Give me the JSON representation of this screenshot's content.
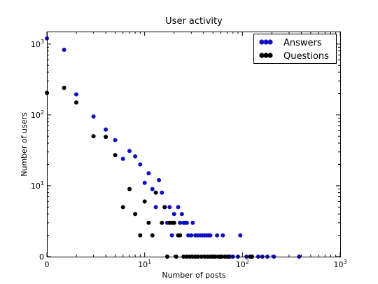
{
  "chart_data": {
    "type": "scatter",
    "title": "User activity",
    "xlabel": "Number of posts",
    "ylabel": "Number of users",
    "xscale": "log",
    "yscale": "log",
    "xlim": [
      1,
      1000
    ],
    "ylim": [
      1,
      1500
    ],
    "x_ticks": [
      {
        "value": 1,
        "base": "0",
        "exp": ""
      },
      {
        "value": 10,
        "base": "10",
        "exp": "1"
      },
      {
        "value": 100,
        "base": "10",
        "exp": "2"
      },
      {
        "value": 1000,
        "base": "10",
        "exp": "3"
      }
    ],
    "y_ticks": [
      {
        "value": 1,
        "base": "0",
        "exp": ""
      },
      {
        "value": 10,
        "base": "10",
        "exp": "1"
      },
      {
        "value": 100,
        "base": "10",
        "exp": "2"
      },
      {
        "value": 1000,
        "base": "10",
        "exp": "3"
      }
    ],
    "grid": false,
    "legend_position": "top-right",
    "series": [
      {
        "name": "Answers",
        "color": "#1010c0",
        "points": [
          [
            1,
            1200
          ],
          [
            1.5,
            830
          ],
          [
            2,
            195
          ],
          [
            3,
            95
          ],
          [
            4,
            62
          ],
          [
            5,
            44
          ],
          [
            6,
            24
          ],
          [
            7,
            31
          ],
          [
            8,
            26
          ],
          [
            9,
            20
          ],
          [
            10,
            11
          ],
          [
            11,
            15
          ],
          [
            12,
            9
          ],
          [
            13,
            5
          ],
          [
            14,
            12
          ],
          [
            15,
            8
          ],
          [
            16,
            5
          ],
          [
            17,
            3
          ],
          [
            18,
            5
          ],
          [
            19,
            2
          ],
          [
            20,
            4
          ],
          [
            22,
            5
          ],
          [
            23,
            3
          ],
          [
            24,
            4
          ],
          [
            25,
            3
          ],
          [
            26,
            3
          ],
          [
            27,
            3
          ],
          [
            28,
            2
          ],
          [
            30,
            2
          ],
          [
            31,
            3
          ],
          [
            33,
            2
          ],
          [
            35,
            2
          ],
          [
            37,
            2
          ],
          [
            39,
            2
          ],
          [
            41,
            2
          ],
          [
            43,
            2
          ],
          [
            45,
            2
          ],
          [
            47,
            2
          ],
          [
            50,
            1
          ],
          [
            55,
            2
          ],
          [
            60,
            1
          ],
          [
            63,
            2
          ],
          [
            70,
            1
          ],
          [
            75,
            1
          ],
          [
            80,
            1
          ],
          [
            90,
            1
          ],
          [
            95,
            2
          ],
          [
            110,
            1
          ],
          [
            125,
            1
          ],
          [
            145,
            1
          ],
          [
            160,
            1
          ],
          [
            180,
            1
          ],
          [
            210,
            1
          ],
          [
            380,
            1
          ]
        ]
      },
      {
        "name": "Questions",
        "color": "#000000",
        "points": [
          [
            1,
            205
          ],
          [
            1.5,
            240
          ],
          [
            2,
            150
          ],
          [
            3,
            50
          ],
          [
            4,
            49
          ],
          [
            5,
            27
          ],
          [
            6,
            5
          ],
          [
            7,
            9
          ],
          [
            8,
            4
          ],
          [
            9,
            2
          ],
          [
            10,
            6
          ],
          [
            11,
            3
          ],
          [
            12,
            2
          ],
          [
            13,
            8
          ],
          [
            15,
            3
          ],
          [
            16,
            5
          ],
          [
            17,
            1
          ],
          [
            18,
            3
          ],
          [
            19,
            3
          ],
          [
            20,
            3
          ],
          [
            21,
            1
          ],
          [
            22,
            2
          ],
          [
            23,
            2
          ],
          [
            25,
            1
          ],
          [
            27,
            1
          ],
          [
            29,
            1
          ],
          [
            31,
            1
          ],
          [
            33,
            1
          ],
          [
            35,
            1
          ],
          [
            38,
            1
          ],
          [
            41,
            1
          ],
          [
            44,
            1
          ],
          [
            47,
            1
          ],
          [
            50,
            1
          ],
          [
            53,
            1
          ],
          [
            57,
            1
          ],
          [
            61,
            1
          ],
          [
            66,
            1
          ],
          [
            72,
            1
          ],
          [
            120,
            1
          ],
          [
            125,
            1
          ]
        ]
      }
    ]
  }
}
